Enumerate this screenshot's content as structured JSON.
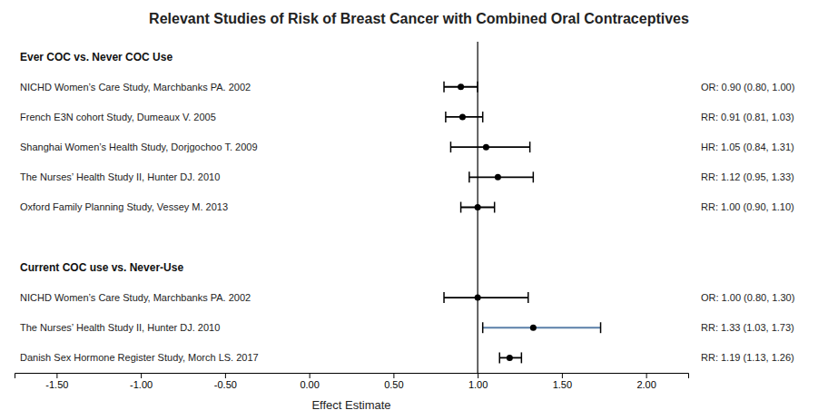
{
  "chart_data": {
    "type": "forest",
    "title": "Relevant Studies of Risk of Breast Cancer with Combined Oral Contraceptives",
    "xlabel": "Effect Estimate",
    "xlim": [
      -1.75,
      2.25
    ],
    "xticks": [
      {
        "value": -1.5,
        "label": "-1.50"
      },
      {
        "value": -1.0,
        "label": "-1.00"
      },
      {
        "value": -0.5,
        "label": "-0.50"
      },
      {
        "value": 0.0,
        "label": "0.00"
      },
      {
        "value": 0.5,
        "label": "0.50"
      },
      {
        "value": 1.0,
        "label": "1.00"
      },
      {
        "value": 1.5,
        "label": "1.50"
      },
      {
        "value": 2.0,
        "label": "2.00"
      }
    ],
    "reference_line": 1.0,
    "data_labels": true,
    "series": [
      {
        "name": "Ever COC vs. Never COC Use",
        "categories": [
          "NICHD Women’s Care Study, Marchbanks PA. 2002",
          "French E3N cohort Study, Dumeaux V. 2005",
          "Shanghai Women’s Health Study, Dorjgochoo T. 2009",
          "The Nurses’ Health Study II, Hunter DJ. 2010",
          "Oxford Family Planning Study, Vessey M. 2013"
        ],
        "values": [
          0.9,
          0.91,
          1.05,
          1.12,
          1.0
        ],
        "ci_low": [
          0.8,
          0.81,
          0.84,
          0.95,
          0.9
        ],
        "ci_high": [
          1.0,
          1.03,
          1.31,
          1.33,
          1.1
        ],
        "value_labels": [
          "OR: 0.90 (0.80, 1.00)",
          "RR: 0.91 (0.81, 1.03)",
          "HR: 1.05 (0.84, 1.31)",
          "RR: 1.12 (0.95, 1.33)",
          "RR: 1.00 (0.90, 1.10)"
        ],
        "colors": [
          "#000000",
          "#000000",
          "#000000",
          "#000000",
          "#000000"
        ]
      },
      {
        "name": "Current COC use vs. Never-Use",
        "categories": [
          "NICHD Women’s Care Study, Marchbanks PA. 2002",
          "The Nurses’ Health Study II, Hunter DJ. 2010",
          "Danish Sex Hormone Register Study, Morch LS. 2017"
        ],
        "values": [
          1.0,
          1.33,
          1.19
        ],
        "ci_low": [
          0.8,
          1.03,
          1.13
        ],
        "ci_high": [
          1.3,
          1.73,
          1.26
        ],
        "value_labels": [
          "OR: 1.00 (0.80, 1.30)",
          "RR: 1.33 (1.03, 1.73)",
          "RR: 1.19 (1.13, 1.26)"
        ],
        "colors": [
          "#000000",
          "#5a7fa8",
          "#000000"
        ]
      }
    ]
  }
}
